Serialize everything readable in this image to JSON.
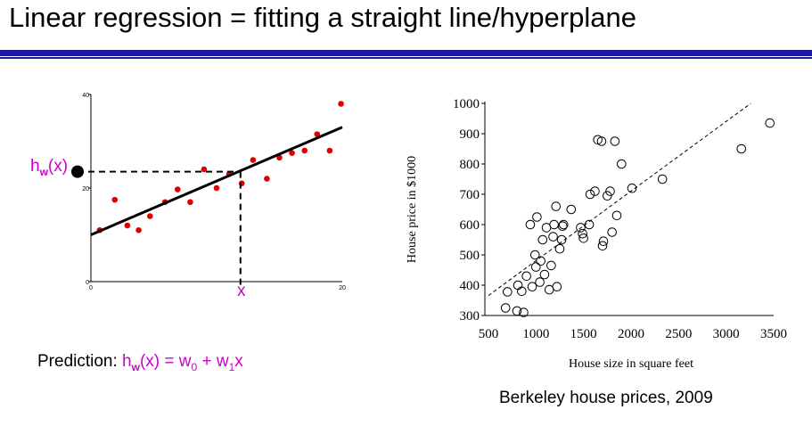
{
  "slide": {
    "title": "Linear regression = fitting a straight line/hyperplane",
    "hw_label": {
      "h": "h",
      "sub": "w",
      "arg": "(x)"
    },
    "x_label": "x",
    "prediction": {
      "prefix": "Prediction: ",
      "h": "h",
      "h_sub": "w",
      "mid": "(x) = w",
      "w0_sub": "0",
      "plus": " + w",
      "w1_sub": "1",
      "end": "x"
    },
    "caption": "Berkeley house prices, 2009"
  },
  "colors": {
    "title_rule": "#1a1aa0",
    "accent_magenta": "#cc00cc",
    "left_points": "#e00000"
  },
  "chart_data": [
    {
      "type": "scatter",
      "title": "",
      "xlabel": "",
      "ylabel": "",
      "xlim": [
        0,
        20
      ],
      "ylim": [
        0,
        40
      ],
      "x_ticks": [
        "0",
        "20"
      ],
      "y_ticks": [
        "0",
        "20",
        "40"
      ],
      "points": [
        {
          "x": 0.7,
          "y": 11
        },
        {
          "x": 1.9,
          "y": 17.5
        },
        {
          "x": 2.9,
          "y": 12
        },
        {
          "x": 3.8,
          "y": 11
        },
        {
          "x": 4.7,
          "y": 14
        },
        {
          "x": 5.9,
          "y": 17
        },
        {
          "x": 6.9,
          "y": 19.7
        },
        {
          "x": 7.9,
          "y": 17
        },
        {
          "x": 9.0,
          "y": 24
        },
        {
          "x": 10.0,
          "y": 20
        },
        {
          "x": 11.0,
          "y": 23
        },
        {
          "x": 12.0,
          "y": 21
        },
        {
          "x": 12.9,
          "y": 26
        },
        {
          "x": 14.0,
          "y": 22
        },
        {
          "x": 15.0,
          "y": 26.5
        },
        {
          "x": 16.0,
          "y": 27.5
        },
        {
          "x": 17.0,
          "y": 28
        },
        {
          "x": 18.0,
          "y": 31.5
        },
        {
          "x": 19.0,
          "y": 28
        },
        {
          "x": 19.9,
          "y": 38
        }
      ],
      "fit_line": {
        "x": [
          0,
          20
        ],
        "y": [
          10,
          33
        ]
      },
      "prediction_point": {
        "x": 11.9,
        "y": 23.5
      },
      "grid": false
    },
    {
      "type": "scatter",
      "title": "",
      "xlabel": "House size in square feet",
      "ylabel": "House price in $1000",
      "xlim": [
        500,
        3500
      ],
      "ylim": [
        300,
        1000
      ],
      "x_ticks": [
        "500",
        "1000",
        "1500",
        "2000",
        "2500",
        "3000",
        "3500"
      ],
      "y_ticks": [
        "300",
        "400",
        "500",
        "600",
        "700",
        "800",
        "900",
        "1000"
      ],
      "points": [
        {
          "x": 680,
          "y": 325
        },
        {
          "x": 700,
          "y": 378
        },
        {
          "x": 800,
          "y": 315
        },
        {
          "x": 810,
          "y": 400
        },
        {
          "x": 850,
          "y": 380
        },
        {
          "x": 870,
          "y": 310
        },
        {
          "x": 900,
          "y": 430
        },
        {
          "x": 940,
          "y": 600
        },
        {
          "x": 960,
          "y": 395
        },
        {
          "x": 990,
          "y": 500
        },
        {
          "x": 1000,
          "y": 460
        },
        {
          "x": 1010,
          "y": 625
        },
        {
          "x": 1040,
          "y": 410
        },
        {
          "x": 1050,
          "y": 480
        },
        {
          "x": 1070,
          "y": 550
        },
        {
          "x": 1090,
          "y": 435
        },
        {
          "x": 1110,
          "y": 590
        },
        {
          "x": 1140,
          "y": 385
        },
        {
          "x": 1160,
          "y": 465
        },
        {
          "x": 1180,
          "y": 560
        },
        {
          "x": 1190,
          "y": 600
        },
        {
          "x": 1210,
          "y": 660
        },
        {
          "x": 1220,
          "y": 395
        },
        {
          "x": 1250,
          "y": 520
        },
        {
          "x": 1270,
          "y": 550
        },
        {
          "x": 1280,
          "y": 595
        },
        {
          "x": 1290,
          "y": 600
        },
        {
          "x": 1370,
          "y": 650
        },
        {
          "x": 1470,
          "y": 590
        },
        {
          "x": 1490,
          "y": 570
        },
        {
          "x": 1500,
          "y": 555
        },
        {
          "x": 1560,
          "y": 600
        },
        {
          "x": 1570,
          "y": 700
        },
        {
          "x": 1620,
          "y": 710
        },
        {
          "x": 1650,
          "y": 880
        },
        {
          "x": 1690,
          "y": 875
        },
        {
          "x": 1700,
          "y": 530
        },
        {
          "x": 1710,
          "y": 545
        },
        {
          "x": 1750,
          "y": 695
        },
        {
          "x": 1780,
          "y": 710
        },
        {
          "x": 1800,
          "y": 575
        },
        {
          "x": 1830,
          "y": 875
        },
        {
          "x": 1850,
          "y": 630
        },
        {
          "x": 1900,
          "y": 800
        },
        {
          "x": 2010,
          "y": 720
        },
        {
          "x": 2330,
          "y": 750
        },
        {
          "x": 3160,
          "y": 850
        },
        {
          "x": 3460,
          "y": 935
        }
      ],
      "fit_line": {
        "x": [
          500,
          3260
        ],
        "y": [
          360,
          1000
        ]
      },
      "grid": false
    }
  ]
}
